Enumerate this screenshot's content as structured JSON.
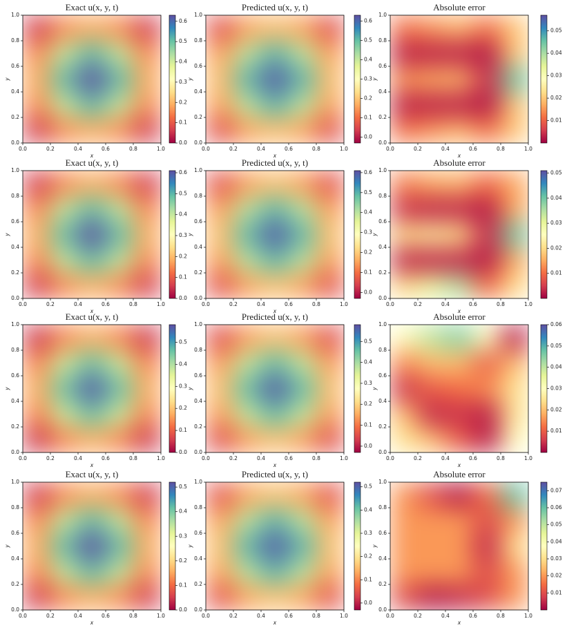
{
  "chart_data": [
    {
      "type": "heatmap",
      "title": "Exact u(x, y, t)",
      "xlabel": "x",
      "ylabel": "y",
      "colormap": "Spectral",
      "x": [
        0.1,
        0.3,
        0.5,
        0.7,
        0.9
      ],
      "y": [
        0.1,
        0.3,
        0.5,
        0.7,
        0.9
      ],
      "z": [
        [
          0.06,
          0.16,
          0.19,
          0.16,
          0.06
        ],
        [
          0.16,
          0.41,
          0.51,
          0.41,
          0.16
        ],
        [
          0.19,
          0.51,
          0.63,
          0.51,
          0.19
        ],
        [
          0.16,
          0.41,
          0.51,
          0.41,
          0.16
        ],
        [
          0.06,
          0.16,
          0.19,
          0.16,
          0.06
        ]
      ],
      "xlim": [
        0,
        1
      ],
      "ylim": [
        0,
        1
      ],
      "xticks": [
        {
          "value": 0,
          "label": "0.0"
        },
        0.2,
        0.4,
        0.6,
        0.8,
        {
          "value": 1,
          "label": "1.0"
        }
      ],
      "yticks": [
        {
          "value": 0,
          "label": "0.0"
        },
        0.2,
        0.4,
        0.6,
        0.8,
        {
          "value": 1,
          "label": "1.0"
        }
      ],
      "clim": [
        0,
        0.63
      ],
      "cticks": [
        {
          "value": 0,
          "label": "0.0"
        },
        0.1,
        0.2,
        0.3,
        0.4,
        0.5,
        0.6
      ]
    },
    {
      "type": "heatmap",
      "title": "Predicted u(x, y, t)",
      "xlabel": "x",
      "ylabel": "y",
      "colormap": "Spectral",
      "x": [
        0.1,
        0.3,
        0.5,
        0.7,
        0.9
      ],
      "y": [
        0.1,
        0.3,
        0.5,
        0.7,
        0.9
      ],
      "z": [
        [
          0.06,
          0.16,
          0.19,
          0.16,
          0.06
        ],
        [
          0.16,
          0.41,
          0.51,
          0.41,
          0.16
        ],
        [
          0.19,
          0.51,
          0.62,
          0.51,
          0.19
        ],
        [
          0.16,
          0.41,
          0.51,
          0.41,
          0.16
        ],
        [
          0.06,
          0.16,
          0.19,
          0.16,
          0.06
        ]
      ],
      "xlim": [
        0,
        1
      ],
      "ylim": [
        0,
        1
      ],
      "xticks": [
        {
          "value": 0,
          "label": "0.0"
        },
        0.2,
        0.4,
        0.6,
        0.8,
        {
          "value": 1,
          "label": "1.0"
        }
      ],
      "yticks": [
        {
          "value": 0,
          "label": "0.0"
        },
        0.2,
        0.4,
        0.6,
        0.8,
        {
          "value": 1,
          "label": "1.0"
        }
      ],
      "clim": [
        -0.03,
        0.63
      ],
      "cticks": [
        {
          "value": 0,
          "label": "0.0"
        },
        0.1,
        0.2,
        0.3,
        0.4,
        0.5,
        0.6
      ]
    },
    {
      "type": "heatmap",
      "title": "Absolute error",
      "xlabel": "x",
      "ylabel": "y",
      "colormap": "Spectral",
      "x": [
        0.1,
        0.3,
        0.5,
        0.7,
        0.9
      ],
      "y": [
        0.1,
        0.3,
        0.5,
        0.7,
        0.9
      ],
      "z": [
        [
          0.012,
          0.015,
          0.018,
          0.012,
          0.02
        ],
        [
          0.003,
          0.003,
          0.003,
          0.002,
          0.02
        ],
        [
          0.015,
          0.017,
          0.018,
          0.005,
          0.045
        ],
        [
          0.003,
          0.003,
          0.003,
          0.002,
          0.02
        ],
        [
          0.012,
          0.015,
          0.018,
          0.012,
          0.02
        ]
      ],
      "xlim": [
        0,
        1
      ],
      "ylim": [
        0,
        1
      ],
      "xticks": [
        {
          "value": 0,
          "label": "0.0"
        },
        0.2,
        0.4,
        0.6,
        0.8,
        {
          "value": 1,
          "label": "1.0"
        }
      ],
      "yticks": [
        {
          "value": 0,
          "label": "0.0"
        },
        0.2,
        0.4,
        0.6,
        0.8,
        {
          "value": 1,
          "label": "1.0"
        }
      ],
      "clim": [
        0,
        0.057
      ],
      "cticks": [
        0.01,
        0.02,
        0.03,
        0.04,
        0.05
      ]
    },
    {
      "type": "heatmap",
      "title": "Exact u(x, y, t)",
      "xlabel": "x",
      "ylabel": "y",
      "colormap": "Spectral",
      "x": [
        0.1,
        0.3,
        0.5,
        0.7,
        0.9
      ],
      "y": [
        0.1,
        0.3,
        0.5,
        0.7,
        0.9
      ],
      "z": [
        [
          0.06,
          0.15,
          0.19,
          0.15,
          0.06
        ],
        [
          0.15,
          0.4,
          0.49,
          0.4,
          0.15
        ],
        [
          0.19,
          0.49,
          0.61,
          0.49,
          0.19
        ],
        [
          0.15,
          0.4,
          0.49,
          0.4,
          0.15
        ],
        [
          0.06,
          0.15,
          0.19,
          0.15,
          0.06
        ]
      ],
      "xlim": [
        0,
        1
      ],
      "ylim": [
        0,
        1
      ],
      "xticks": [
        {
          "value": 0,
          "label": "0.0"
        },
        0.2,
        0.4,
        0.6,
        0.8,
        {
          "value": 1,
          "label": "1.0"
        }
      ],
      "yticks": [
        {
          "value": 0,
          "label": "0.0"
        },
        0.2,
        0.4,
        0.6,
        0.8,
        {
          "value": 1,
          "label": "1.0"
        }
      ],
      "clim": [
        0,
        0.61
      ],
      "cticks": [
        {
          "value": 0,
          "label": "0.0"
        },
        0.1,
        0.2,
        0.3,
        0.4,
        0.5,
        0.6
      ]
    },
    {
      "type": "heatmap",
      "title": "Predicted u(x, y, t)",
      "xlabel": "x",
      "ylabel": "y",
      "colormap": "Spectral",
      "x": [
        0.1,
        0.3,
        0.5,
        0.7,
        0.9
      ],
      "y": [
        0.1,
        0.3,
        0.5,
        0.7,
        0.9
      ],
      "z": [
        [
          0.06,
          0.15,
          0.19,
          0.15,
          0.06
        ],
        [
          0.15,
          0.4,
          0.49,
          0.4,
          0.15
        ],
        [
          0.19,
          0.49,
          0.6,
          0.49,
          0.19
        ],
        [
          0.15,
          0.4,
          0.49,
          0.4,
          0.15
        ],
        [
          0.06,
          0.15,
          0.19,
          0.15,
          0.06
        ]
      ],
      "xlim": [
        0,
        1
      ],
      "ylim": [
        0,
        1
      ],
      "xticks": [
        {
          "value": 0,
          "label": "0.0"
        },
        0.2,
        0.4,
        0.6,
        0.8,
        {
          "value": 1,
          "label": "1.0"
        }
      ],
      "yticks": [
        {
          "value": 0,
          "label": "0.0"
        },
        0.2,
        0.4,
        0.6,
        0.8,
        {
          "value": 1,
          "label": "1.0"
        }
      ],
      "clim": [
        -0.03,
        0.61
      ],
      "cticks": [
        {
          "value": 0,
          "label": "0.0"
        },
        0.1,
        0.2,
        0.3,
        0.4,
        0.5,
        0.6
      ]
    },
    {
      "type": "heatmap",
      "title": "Absolute error",
      "xlabel": "x",
      "ylabel": "y",
      "colormap": "Spectral",
      "x": [
        0.1,
        0.3,
        0.5,
        0.7,
        0.9
      ],
      "y": [
        0.1,
        0.3,
        0.5,
        0.7,
        0.9
      ],
      "z": [
        [
          0.02,
          0.03,
          0.035,
          0.01,
          0.02
        ],
        [
          0.003,
          0.003,
          0.003,
          0.002,
          0.015
        ],
        [
          0.02,
          0.022,
          0.02,
          0.004,
          0.04
        ],
        [
          0.004,
          0.003,
          0.003,
          0.002,
          0.015
        ],
        [
          0.012,
          0.015,
          0.016,
          0.01,
          0.015
        ]
      ],
      "xlim": [
        0,
        1
      ],
      "ylim": [
        0,
        1
      ],
      "xticks": [
        {
          "value": 0,
          "label": "0.0"
        },
        0.2,
        0.4,
        0.6,
        0.8,
        {
          "value": 1,
          "label": "1.0"
        }
      ],
      "yticks": [
        {
          "value": 0,
          "label": "0.0"
        },
        0.2,
        0.4,
        0.6,
        0.8,
        {
          "value": 1,
          "label": "1.0"
        }
      ],
      "clim": [
        0,
        0.051
      ],
      "cticks": [
        0.01,
        0.02,
        0.03,
        0.04,
        0.05
      ]
    },
    {
      "type": "heatmap",
      "title": "Exact u(x, y, t)",
      "xlabel": "x",
      "ylabel": "y",
      "colormap": "Spectral",
      "x": [
        0.1,
        0.3,
        0.5,
        0.7,
        0.9
      ],
      "y": [
        0.1,
        0.3,
        0.5,
        0.7,
        0.9
      ],
      "z": [
        [
          0.05,
          0.14,
          0.18,
          0.14,
          0.05
        ],
        [
          0.14,
          0.37,
          0.46,
          0.37,
          0.14
        ],
        [
          0.18,
          0.46,
          0.57,
          0.46,
          0.18
        ],
        [
          0.14,
          0.37,
          0.46,
          0.37,
          0.14
        ],
        [
          0.05,
          0.14,
          0.18,
          0.14,
          0.05
        ]
      ],
      "xlim": [
        0,
        1
      ],
      "ylim": [
        0,
        1
      ],
      "xticks": [
        {
          "value": 0,
          "label": "0.0"
        },
        0.2,
        0.4,
        0.6,
        0.8,
        {
          "value": 1,
          "label": "1.0"
        }
      ],
      "yticks": [
        {
          "value": 0,
          "label": "0.0"
        },
        0.2,
        0.4,
        0.6,
        0.8,
        {
          "value": 1,
          "label": "1.0"
        }
      ],
      "clim": [
        0,
        0.58
      ],
      "cticks": [
        {
          "value": 0,
          "label": "0.0"
        },
        0.1,
        0.2,
        0.3,
        0.4,
        0.5
      ]
    },
    {
      "type": "heatmap",
      "title": "Predicted u(x, y, t)",
      "xlabel": "x",
      "ylabel": "y",
      "colormap": "Spectral",
      "x": [
        0.1,
        0.3,
        0.5,
        0.7,
        0.9
      ],
      "y": [
        0.1,
        0.3,
        0.5,
        0.7,
        0.9
      ],
      "z": [
        [
          0.05,
          0.14,
          0.18,
          0.14,
          0.05
        ],
        [
          0.14,
          0.37,
          0.46,
          0.37,
          0.14
        ],
        [
          0.18,
          0.46,
          0.57,
          0.46,
          0.18
        ],
        [
          0.14,
          0.37,
          0.46,
          0.37,
          0.14
        ],
        [
          0.05,
          0.14,
          0.18,
          0.14,
          0.05
        ]
      ],
      "xlim": [
        0,
        1
      ],
      "ylim": [
        0,
        1
      ],
      "xticks": [
        {
          "value": 0,
          "label": "0.0"
        },
        0.2,
        0.4,
        0.6,
        0.8,
        {
          "value": 1,
          "label": "1.0"
        }
      ],
      "yticks": [
        {
          "value": 0,
          "label": "0.0"
        },
        0.2,
        0.4,
        0.6,
        0.8,
        {
          "value": 1,
          "label": "1.0"
        }
      ],
      "clim": [
        -0.03,
        0.58
      ],
      "cticks": [
        {
          "value": 0,
          "label": "0.0"
        },
        0.1,
        0.2,
        0.3,
        0.4,
        0.5
      ]
    },
    {
      "type": "heatmap",
      "title": "Absolute error",
      "xlabel": "x",
      "ylabel": "y",
      "colormap": "Spectral",
      "x": [
        0.1,
        0.3,
        0.5,
        0.7,
        0.9
      ],
      "y": [
        0.1,
        0.3,
        0.5,
        0.7,
        0.9
      ],
      "z": [
        [
          0.025,
          0.02,
          0.01,
          0.003,
          0.03
        ],
        [
          0.02,
          0.004,
          0.005,
          0.003,
          0.025
        ],
        [
          0.005,
          0.01,
          0.012,
          0.015,
          0.025
        ],
        [
          0.015,
          0.02,
          0.02,
          0.01,
          0.02
        ],
        [
          0.03,
          0.04,
          0.045,
          0.03,
          0.003
        ]
      ],
      "xlim": [
        0,
        1
      ],
      "ylim": [
        0,
        1
      ],
      "xticks": [
        {
          "value": 0,
          "label": "0.0"
        },
        0.2,
        0.4,
        0.6,
        0.8,
        {
          "value": 1,
          "label": "1.0"
        }
      ],
      "yticks": [
        {
          "value": 0,
          "label": "0.0"
        },
        0.2,
        0.4,
        0.6,
        0.8,
        {
          "value": 1,
          "label": "1.0"
        }
      ],
      "clim": [
        0,
        0.06
      ],
      "cticks": [
        0.01,
        0.02,
        0.03,
        0.04,
        0.05,
        0.06
      ]
    },
    {
      "type": "heatmap",
      "title": "Exact u(x, y, t)",
      "xlabel": "x",
      "ylabel": "y",
      "colormap": "Spectral",
      "x": [
        0.1,
        0.3,
        0.5,
        0.7,
        0.9
      ],
      "y": [
        0.1,
        0.3,
        0.5,
        0.7,
        0.9
      ],
      "z": [
        [
          0.05,
          0.13,
          0.16,
          0.13,
          0.05
        ],
        [
          0.13,
          0.34,
          0.42,
          0.34,
          0.13
        ],
        [
          0.16,
          0.42,
          0.52,
          0.42,
          0.16
        ],
        [
          0.13,
          0.34,
          0.42,
          0.34,
          0.13
        ],
        [
          0.05,
          0.13,
          0.16,
          0.13,
          0.05
        ]
      ],
      "xlim": [
        0,
        1
      ],
      "ylim": [
        0,
        1
      ],
      "xticks": [
        {
          "value": 0,
          "label": "0.0"
        },
        0.2,
        0.4,
        0.6,
        0.8,
        {
          "value": 1,
          "label": "1.0"
        }
      ],
      "yticks": [
        {
          "value": 0,
          "label": "0.0"
        },
        0.2,
        0.4,
        0.6,
        0.8,
        {
          "value": 1,
          "label": "1.0"
        }
      ],
      "clim": [
        0,
        0.52
      ],
      "cticks": [
        {
          "value": 0,
          "label": "0.0"
        },
        0.1,
        0.2,
        0.3,
        0.4,
        0.5
      ]
    },
    {
      "type": "heatmap",
      "title": "Predicted u(x, y, t)",
      "xlabel": "x",
      "ylabel": "y",
      "colormap": "Spectral",
      "x": [
        0.1,
        0.3,
        0.5,
        0.7,
        0.9
      ],
      "y": [
        0.1,
        0.3,
        0.5,
        0.7,
        0.9
      ],
      "z": [
        [
          0.05,
          0.13,
          0.16,
          0.13,
          0.05
        ],
        [
          0.13,
          0.34,
          0.42,
          0.34,
          0.13
        ],
        [
          0.16,
          0.42,
          0.51,
          0.42,
          0.16
        ],
        [
          0.13,
          0.34,
          0.42,
          0.34,
          0.13
        ],
        [
          0.05,
          0.13,
          0.16,
          0.13,
          0.05
        ]
      ],
      "xlim": [
        0,
        1
      ],
      "ylim": [
        0,
        1
      ],
      "xticks": [
        {
          "value": 0,
          "label": "0.0"
        },
        0.2,
        0.4,
        0.6,
        0.8,
        {
          "value": 1,
          "label": "1.0"
        }
      ],
      "yticks": [
        {
          "value": 0,
          "label": "0.0"
        },
        0.2,
        0.4,
        0.6,
        0.8,
        {
          "value": 1,
          "label": "1.0"
        }
      ],
      "clim": [
        -0.03,
        0.52
      ],
      "cticks": [
        {
          "value": 0,
          "label": "0.0"
        },
        0.1,
        0.2,
        0.3,
        0.4,
        0.5
      ]
    },
    {
      "type": "heatmap",
      "title": "Absolute error",
      "xlabel": "x",
      "ylabel": "y",
      "colormap": "Spectral",
      "x": [
        0.1,
        0.3,
        0.5,
        0.7,
        0.9
      ],
      "y": [
        0.1,
        0.3,
        0.5,
        0.7,
        0.9
      ],
      "z": [
        [
          0.01,
          0.003,
          0.005,
          0.01,
          0.02
        ],
        [
          0.02,
          0.02,
          0.02,
          0.01,
          0.02
        ],
        [
          0.02,
          0.02,
          0.02,
          0.005,
          0.03
        ],
        [
          0.02,
          0.02,
          0.02,
          0.01,
          0.02
        ],
        [
          0.02,
          0.01,
          0.003,
          0.015,
          0.06
        ]
      ],
      "xlim": [
        0,
        1
      ],
      "ylim": [
        0,
        1
      ],
      "xticks": [
        {
          "value": 0,
          "label": "0.0"
        },
        0.2,
        0.4,
        0.6,
        0.8,
        {
          "value": 1,
          "label": "1.0"
        }
      ],
      "yticks": [
        {
          "value": 0,
          "label": "0.0"
        },
        0.2,
        0.4,
        0.6,
        0.8,
        {
          "value": 1,
          "label": "1.0"
        }
      ],
      "clim": [
        0,
        0.075
      ],
      "cticks": [
        0.01,
        0.02,
        0.03,
        0.04,
        0.05,
        0.06,
        0.07
      ]
    }
  ]
}
